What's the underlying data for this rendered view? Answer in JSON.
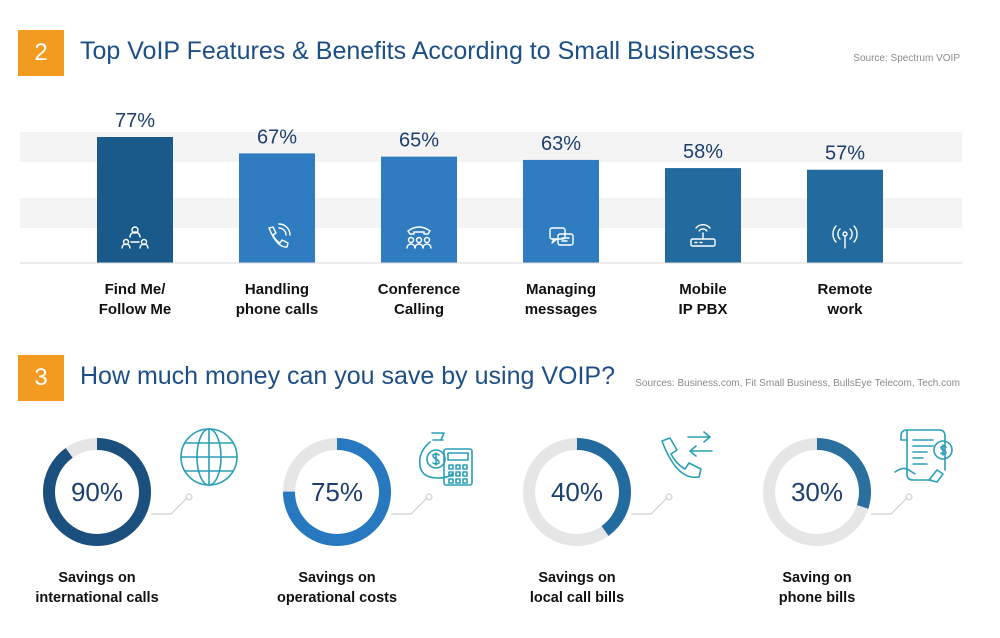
{
  "section2": {
    "number": "2",
    "title": "Top VoIP Features & Benefits According to Small Businesses",
    "source": "Source: Spectrum VOIP"
  },
  "section3": {
    "number": "3",
    "title": "How much money can you save by using VOIP?",
    "source": "Sources: Business.com, Fit Small Business, BullsEye Telecom, Tech.com"
  },
  "chart_data": [
    {
      "type": "bar",
      "categories": [
        [
          "Find Me/",
          "Follow Me"
        ],
        [
          "Handling",
          "phone calls"
        ],
        [
          "Conference",
          "Calling"
        ],
        [
          "Managing",
          "messages"
        ],
        [
          "Mobile",
          "IP PBX"
        ],
        [
          "Remote",
          "work"
        ]
      ],
      "values": [
        77,
        67,
        65,
        63,
        58,
        57
      ],
      "value_labels": [
        "77%",
        "67%",
        "65%",
        "63%",
        "58%",
        "57%"
      ],
      "icons": [
        "people-network-icon",
        "phone-call-icon",
        "conference-group-icon",
        "chat-bubbles-icon",
        "router-icon",
        "antenna-signal-icon"
      ],
      "colors": [
        "#1a5a8a",
        "#2f7cc1",
        "#2f7cc1",
        "#2f7cc1",
        "#236a9e",
        "#236a9e"
      ],
      "title": "Top VoIP Features & Benefits According to Small Businesses",
      "ylim": [
        0,
        100
      ]
    },
    {
      "type": "pie",
      "categories": [
        [
          "Savings on",
          "international calls"
        ],
        [
          "Savings on",
          "operational costs"
        ],
        [
          "Savings on",
          "local call bills"
        ],
        [
          "Saving on",
          "phone bills"
        ]
      ],
      "values": [
        90,
        75,
        40,
        30
      ],
      "value_labels": [
        "90%",
        "75%",
        "40%",
        "30%"
      ],
      "icons": [
        "globe-icon",
        "money-bag-calculator-icon",
        "phone-arrows-icon",
        "bill-invoice-icon"
      ],
      "colors": [
        "#1b4f7d",
        "#2878c0",
        "#236a9e",
        "#2a6f9e"
      ],
      "track_color": "#e6e6e6",
      "title": "How much money can you save by using VOIP?"
    }
  ]
}
